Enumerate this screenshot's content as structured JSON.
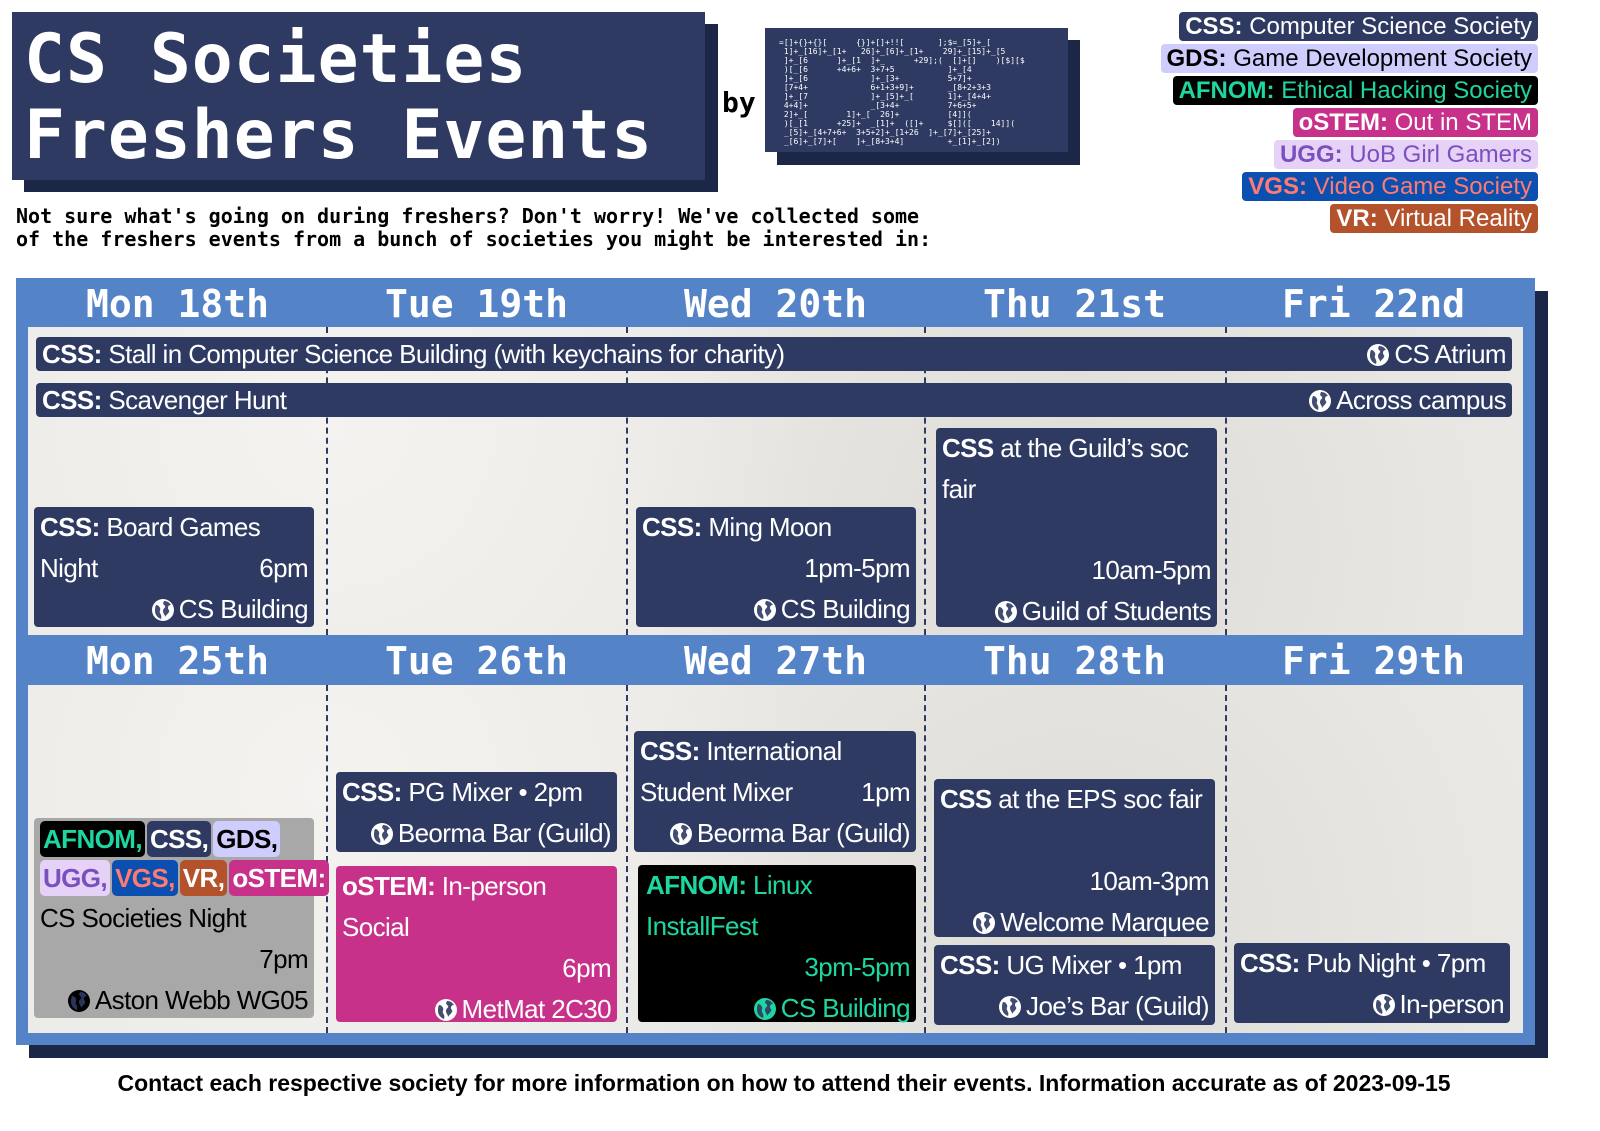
{
  "title": {
    "line1": "CS Societies",
    "line2": "Freshers Events",
    "by": "by",
    "logo_text": "=[]+{}+{}[      {}]+[]+!![       ];$=_[5]+_[\n 1]+_[16]+_[1+   26]+_[6]+_[1+    29]+_[15]+_[5\n ]+_[6      ]+_[1  ]+_      +29];(  []+[]    )[$][$\n )[_[6      +4+6+  3+7+5           ]+_[4\n ]+_[6             ]+_[3+          5+7]+\n [7+4+             6+1+3+9]+       _[8+2+3+3\n ]+_[7             ]+_[5]+_[       1]+_[4+4+\n 4+4]+             _[3+4+          7+6+5+\n 2]+_[        1]+_[  26]+          [4]](\n )[_[1      +25]+  _[1]+  ([]+     $[]([    14]](\n _[5]+_[4+7+6+  3+5+2]+_[1+26  ]+_[7]+_[25]+\n _[6]+_[7]+[    ]+_[8+3+4]         +_[1]+_[2])"
  },
  "legend": [
    {
      "abbr": "CSS:",
      "name": "Computer Science Society",
      "bg": "#2e3a62",
      "fg": "#ffffff"
    },
    {
      "abbr": "GDS:",
      "name": "Game Development Society",
      "bg": "#cfcdfd",
      "fg": "#000000"
    },
    {
      "abbr": "AFNOM:",
      "name": "Ethical Hacking Society",
      "bg": "#000000",
      "fg": "#1ed6a0"
    },
    {
      "abbr": "oSTEM:",
      "name": "Out in STEM",
      "bg": "#c8318a",
      "fg": "#ffffff"
    },
    {
      "abbr": "UGG:",
      "name": "UoB Girl Gamers",
      "bg": "#e6d2f7",
      "fg": "#7a4fc0"
    },
    {
      "abbr": "VGS:",
      "name": "Video Game Society",
      "bg": "#0b4fb0",
      "fg": "#ff7a70"
    },
    {
      "abbr": "VR:",
      "name": "Virtual Reality",
      "bg": "#b4522c",
      "fg": "#ffffff"
    }
  ],
  "intro": "Not sure what's going on during freshers? Don't worry! We've collected some of the freshers events from a bunch of societies you might be interested in:",
  "week1": [
    "Mon 18th",
    "Tue 19th",
    "Wed 20th",
    "Thu 21st",
    "Fri 22nd"
  ],
  "week2": [
    "Mon 25th",
    "Tue 26th",
    "Wed 27th",
    "Thu 28th",
    "Fri 29th"
  ],
  "events": {
    "stall": {
      "soc": "CSS:",
      "title": "Stall in Computer Science Building (with keychains for charity)",
      "location": "CS Atrium"
    },
    "hunt": {
      "soc": "CSS:",
      "title": "Scavenger Hunt",
      "location": "Across campus"
    },
    "boardgames": {
      "soc": "CSS:",
      "title1": "Board Games",
      "title2": "Night",
      "time": "6pm",
      "location": "CS Building"
    },
    "mingmoon": {
      "soc": "CSS:",
      "title": "Ming Moon",
      "time": "1pm-5pm",
      "location": "CS Building"
    },
    "guildfair": {
      "soc": "CSS",
      "title1": "at the Guild’s soc",
      "title2": "fair",
      "time": "10am-5pm",
      "location": "Guild of Students"
    },
    "socnight": {
      "tags": [
        "AFNOM,",
        "CSS,",
        "GDS,",
        "UGG,",
        "VGS,",
        "VR,",
        "oSTEM:"
      ],
      "title": "CS Societies Night",
      "time": "7pm",
      "location": "Aston Webb WG05"
    },
    "pgmixer": {
      "soc": "CSS:",
      "title": "PG Mixer • 2pm",
      "location": "Beorma Bar (Guild)"
    },
    "ostemsocial": {
      "soc": "oSTEM:",
      "title1": "In-person",
      "title2": "Social",
      "time": "6pm",
      "location": "MetMat 2C30"
    },
    "intmixer": {
      "soc": "CSS:",
      "title1": "International",
      "title2": "Student Mixer",
      "time": "1pm",
      "location": "Beorma Bar (Guild)"
    },
    "linux": {
      "soc": "AFNOM:",
      "title1": "Linux",
      "title2": "InstallFest",
      "time": "3pm-5pm",
      "location": "CS Building"
    },
    "epsfair": {
      "soc": "CSS",
      "title": "at the EPS soc fair",
      "time": "10am-3pm",
      "location": "Welcome Marquee"
    },
    "ugmixer": {
      "soc": "CSS:",
      "title": "UG Mixer • 1pm",
      "location": "Joe’s Bar (Guild)"
    },
    "pubnight": {
      "soc": "CSS:",
      "title": "Pub Night • 7pm",
      "location": "In-person"
    }
  },
  "icons": {
    "location": "globe-icon"
  },
  "colors": {
    "navy": "#2e3a62",
    "calendar_blue": "#5583c8",
    "ostem": "#c8318a",
    "afnom_green": "#1ed6a0",
    "socnight_gray": "#a8a8a8"
  },
  "footer": "Contact each respective society for more information on how to attend their events. Information accurate as of 2023-09-15"
}
